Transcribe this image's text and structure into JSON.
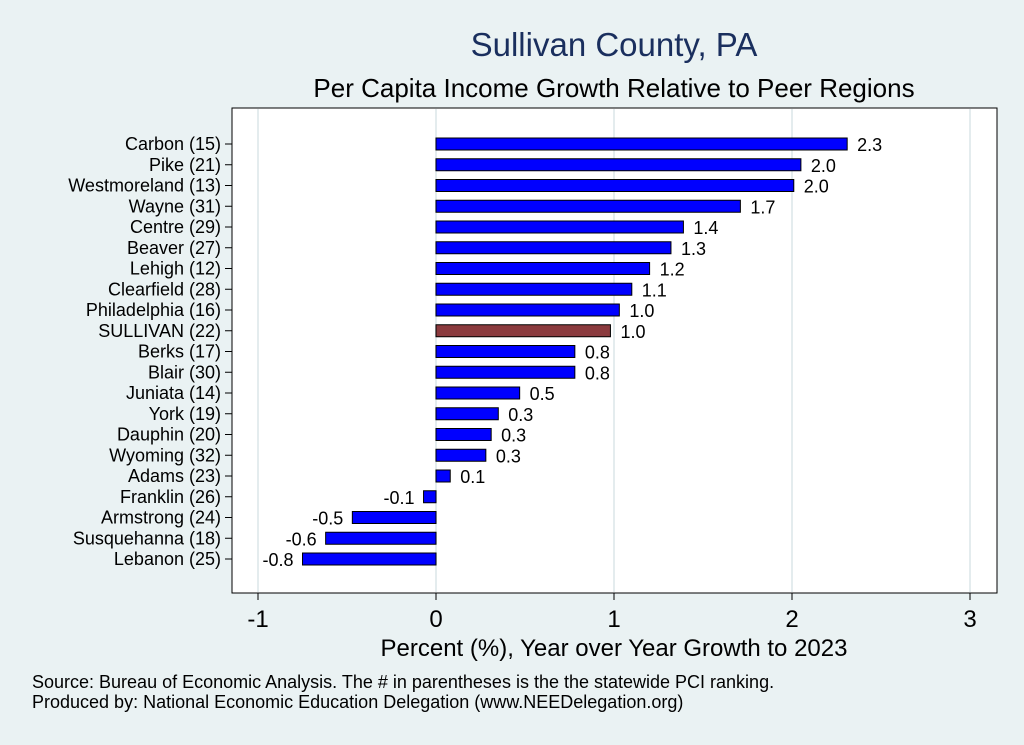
{
  "chart_data": {
    "type": "bar",
    "orientation": "horizontal",
    "title": "Sullivan County, PA",
    "subtitle": "Per Capita Income Growth Relative to Peer Regions",
    "xlabel": "Percent (%), Year over Year Growth to 2023",
    "ylabel": "",
    "xlim": [
      -1,
      3
    ],
    "xticks": [
      "-1",
      "0",
      "1",
      "2",
      "3"
    ],
    "grid": "vertical",
    "categories": [
      "Carbon (15)",
      "Pike (21)",
      "Westmoreland (13)",
      "Wayne (31)",
      "Centre (29)",
      "Beaver (27)",
      "Lehigh (12)",
      "Clearfield (28)",
      "Philadelphia (16)",
      "SULLIVAN (22)",
      "Berks (17)",
      "Blair (30)",
      "Juniata (14)",
      "York (19)",
      "Dauphin (20)",
      "Wyoming (32)",
      "Adams (23)",
      "Franklin (26)",
      "Armstrong (24)",
      "Susquehanna (18)",
      "Lebanon (25)"
    ],
    "values": [
      2.31,
      2.05,
      2.01,
      1.71,
      1.39,
      1.32,
      1.2,
      1.1,
      1.03,
      0.98,
      0.78,
      0.78,
      0.47,
      0.35,
      0.31,
      0.28,
      0.08,
      -0.07,
      -0.47,
      -0.62,
      -0.75
    ],
    "value_labels": [
      "2.3",
      "2.0",
      "2.0",
      "1.7",
      "1.4",
      "1.3",
      "1.2",
      "1.1",
      "1.0",
      "1.0",
      "0.8",
      "0.8",
      "0.5",
      "0.3",
      "0.3",
      "0.3",
      "0.1",
      "-0.1",
      "-0.5",
      "-0.6",
      "-0.8"
    ],
    "highlight": "SULLIVAN (22)",
    "colors": {
      "bar": "#0000ff",
      "highlight": "#8b3a3e",
      "bar_edge": "#000000",
      "grid": "#e4ecee",
      "plot_bg": "#ffffff"
    }
  },
  "footer": {
    "source": "Source: Bureau of Economic Analysis. The # in parentheses is the the statewide PCI ranking.",
    "produced_by": "Produced by: National Economic Education Delegation (www.NEEDelegation.org)"
  }
}
